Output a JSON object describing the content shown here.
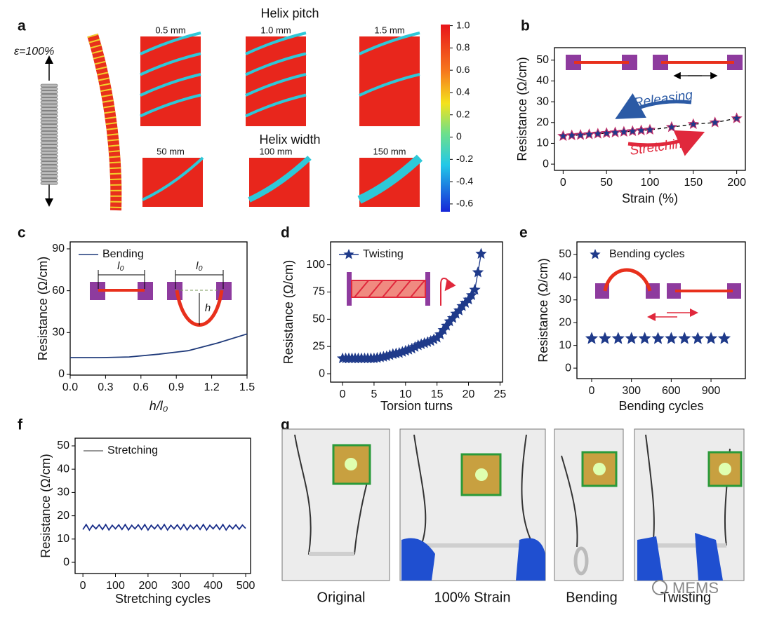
{
  "panel_a": {
    "panel_label": "a",
    "strain_label": "ε=100%",
    "pitch_title": "Helix pitch",
    "pitch_labels": [
      "0.5 mm",
      "1.0 mm",
      "1.5 mm"
    ],
    "width_title": "Helix width",
    "width_labels": [
      "50 mm",
      "100 mm",
      "150 mm"
    ],
    "colorbar": {
      "clim": [
        -0.67,
        1.01
      ],
      "ticks": [
        {
          "value": 1,
          "label": "1.0"
        },
        0.8,
        0.6,
        0.4,
        0.2,
        0,
        -0.2,
        -0.4,
        -0.6
      ]
    }
  },
  "chart_data": [
    {
      "type": "scatter",
      "panel_label": "b",
      "xlabel": "Strain (%)",
      "ylabel": "Resistance (Ω/cm)",
      "x": [
        0,
        10,
        20,
        30,
        40,
        50,
        60,
        70,
        80,
        90,
        100,
        125,
        150,
        175,
        200
      ],
      "xlim": [
        -10,
        210
      ],
      "ylim": [
        -3,
        56
      ],
      "xticks": [
        0,
        50,
        100,
        150,
        200
      ],
      "yticks": [
        0,
        10,
        20,
        30,
        40,
        50
      ],
      "series": [
        {
          "color": "#1f3a8a",
          "edge": "#c0306a",
          "marker": "star",
          "line": "dashed",
          "values": [
            13.5,
            13.8,
            14,
            14.3,
            14.6,
            14.9,
            15.2,
            15.5,
            15.8,
            16.2,
            16.5,
            17.8,
            19.2,
            20,
            22
          ]
        }
      ],
      "annotations": [
        {
          "text": "Releasing",
          "color": "#2b5aa5"
        },
        {
          "text": "Stretching",
          "color": "#e0283c"
        }
      ]
    },
    {
      "type": "line",
      "panel_label": "c",
      "xlabel": "h/l₀",
      "ylabel": "Resistance (Ω/cm)",
      "legend": "upper left",
      "x": [
        0,
        0.25,
        0.5,
        0.75,
        1,
        1.25,
        1.5
      ],
      "xlim": [
        0,
        1.5
      ],
      "ylim": [
        -0.5,
        95
      ],
      "xticks": [
        {
          "value": 0,
          "label": "0.0"
        },
        0.3,
        0.6,
        0.9,
        1.2,
        1.5
      ],
      "yticks": [
        0,
        30,
        60,
        90
      ],
      "series": [
        {
          "name": "Bending",
          "color": "#1f3a7a",
          "line": "solid",
          "values": [
            12,
            12,
            12.5,
            14.5,
            17,
            22.5,
            29
          ]
        }
      ],
      "annotations": [
        {
          "text": "l₀"
        },
        {
          "text": "l₀"
        },
        {
          "text": "h"
        }
      ]
    },
    {
      "type": "line",
      "panel_label": "d",
      "xlabel": "Torsion turns",
      "ylabel": "Resistance (Ω/cm)",
      "legend": "upper left",
      "x": [
        0,
        0.5,
        1,
        1.5,
        2,
        2.5,
        3,
        3.5,
        4,
        4.5,
        5,
        5.5,
        6,
        6.5,
        7,
        7.5,
        8,
        8.5,
        9,
        9.5,
        10,
        10.5,
        11,
        11.5,
        12,
        12.5,
        13,
        13.5,
        14,
        14.5,
        15,
        15.5,
        16,
        16.5,
        17,
        17.5,
        18,
        18.5,
        19,
        19.5,
        20,
        20.5,
        21,
        21.5,
        22
      ],
      "xlim": [
        -1.9,
        25.4
      ],
      "ylim": [
        -7.7,
        121
      ],
      "xticks": [
        0,
        5,
        10,
        15,
        20,
        25
      ],
      "yticks": [
        0,
        25,
        50,
        75,
        100
      ],
      "series": [
        {
          "name": "Twisting",
          "color": "#1f3a8a",
          "marker": "star",
          "line": "solid",
          "values": [
            14,
            14,
            14,
            14,
            14,
            14,
            14,
            14,
            14,
            14,
            14,
            14.5,
            15,
            15.5,
            16,
            17,
            18,
            18.5,
            19,
            20,
            21,
            22,
            23,
            24.5,
            26,
            27,
            28,
            29,
            30,
            31.5,
            33,
            36,
            40,
            44,
            48,
            51,
            55,
            58,
            62,
            65,
            68,
            72,
            77,
            93,
            110
          ]
        }
      ]
    },
    {
      "type": "scatter",
      "panel_label": "e",
      "xlabel": "Bending cycles",
      "ylabel": "Resistance (Ω/cm)",
      "legend": "upper left",
      "x": [
        0,
        100,
        200,
        300,
        400,
        500,
        600,
        700,
        800,
        900,
        1000
      ],
      "xlim": [
        -111,
        1159
      ],
      "ylim": [
        -4.6,
        55.5
      ],
      "xticks": [
        0,
        300,
        600,
        900
      ],
      "yticks": [
        0,
        10,
        20,
        30,
        40,
        50
      ],
      "series": [
        {
          "name": "Bending cycles",
          "color": "#1f3a8a",
          "marker": "star",
          "values": [
            13,
            13,
            13,
            13,
            13,
            13,
            13,
            13,
            13,
            13,
            13
          ]
        }
      ]
    },
    {
      "type": "line",
      "panel_label": "f",
      "xlabel": "Stretching cycles",
      "ylabel": "Resistance (Ω/cm)",
      "legend": "upper left",
      "x": [
        0,
        10,
        20,
        30,
        40,
        50,
        60,
        70,
        80,
        90,
        100,
        110,
        120,
        130,
        140,
        150,
        160,
        170,
        180,
        190,
        200,
        210,
        220,
        230,
        240,
        250,
        260,
        270,
        280,
        290,
        300,
        310,
        320,
        330,
        340,
        350,
        360,
        370,
        380,
        390,
        400,
        410,
        420,
        430,
        440,
        450,
        460,
        470,
        480,
        490,
        500
      ],
      "xlim": [
        -24,
        515
      ],
      "ylim": [
        -4.8,
        53.3
      ],
      "xticks": [
        0,
        100,
        200,
        300,
        400,
        500
      ],
      "yticks": [
        0,
        10,
        20,
        30,
        40,
        50
      ],
      "series": [
        {
          "name": "Stretching",
          "color": "#1a2f8a",
          "line": "solid",
          "values": [
            14.1,
            16.2,
            13.9,
            15.9,
            14.4,
            16.1,
            14.1,
            16.2,
            13.9,
            15.9,
            14.4,
            16.1,
            14.1,
            16.2,
            13.9,
            15.9,
            14.4,
            16.1,
            14.1,
            16.2,
            13.9,
            15.9,
            14.4,
            16.1,
            14.1,
            16.2,
            13.9,
            15.9,
            14.4,
            16.1,
            14.1,
            16.2,
            13.9,
            15.9,
            14.4,
            16.1,
            14.1,
            16.2,
            13.9,
            15.9,
            14.4,
            16.1,
            14.1,
            16.2,
            13.9,
            15.9,
            14.4,
            16.1,
            14.2,
            16,
            14.6
          ]
        }
      ]
    }
  ],
  "panel_g": {
    "panel_label": "g",
    "captions": [
      "Original",
      "100% Strain",
      "Bending",
      "Twisting"
    ],
    "watermark": "MEMS"
  }
}
